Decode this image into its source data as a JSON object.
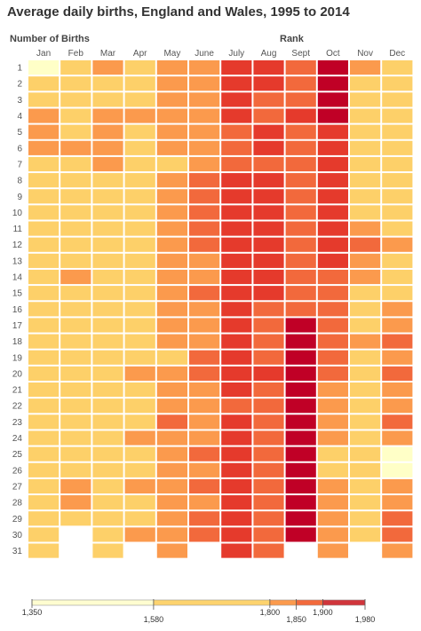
{
  "chart_data": {
    "type": "heatmap",
    "title": "Average daily births, England and Wales, 1995 to 2014",
    "header_left": "Number of Births",
    "header_right": "Rank",
    "months": [
      "Jan",
      "Feb",
      "Mar",
      "Apr",
      "May",
      "June",
      "July",
      "Aug",
      "Sept",
      "Oct",
      "Nov",
      "Dec"
    ],
    "days": [
      "1",
      "2",
      "3",
      "4",
      "5",
      "6",
      "7",
      "8",
      "9",
      "10",
      "11",
      "12",
      "13",
      "14",
      "15",
      "16",
      "17",
      "18",
      "19",
      "20",
      "21",
      "22",
      "23",
      "24",
      "25",
      "26",
      "27",
      "28",
      "29",
      "30",
      "31"
    ],
    "rank_matrix": [
      [
        1,
        2,
        3,
        2,
        3,
        3,
        5,
        5,
        4,
        6,
        3,
        2
      ],
      [
        2,
        2,
        2,
        2,
        3,
        3,
        5,
        5,
        4,
        6,
        2,
        2
      ],
      [
        2,
        2,
        2,
        2,
        3,
        3,
        5,
        4,
        4,
        6,
        2,
        2
      ],
      [
        3,
        2,
        3,
        3,
        3,
        3,
        5,
        4,
        5,
        6,
        2,
        2
      ],
      [
        3,
        2,
        3,
        2,
        3,
        3,
        4,
        5,
        4,
        5,
        2,
        2
      ],
      [
        3,
        3,
        3,
        2,
        3,
        3,
        4,
        5,
        4,
        5,
        2,
        2
      ],
      [
        2,
        2,
        3,
        2,
        2,
        3,
        4,
        4,
        4,
        5,
        2,
        2
      ],
      [
        2,
        2,
        2,
        2,
        3,
        4,
        5,
        5,
        4,
        5,
        2,
        2
      ],
      [
        2,
        2,
        2,
        2,
        3,
        4,
        5,
        5,
        4,
        5,
        2,
        2
      ],
      [
        2,
        2,
        2,
        2,
        3,
        4,
        5,
        5,
        4,
        5,
        2,
        2
      ],
      [
        2,
        2,
        2,
        2,
        3,
        4,
        5,
        5,
        4,
        5,
        3,
        2
      ],
      [
        2,
        2,
        2,
        2,
        3,
        4,
        5,
        5,
        4,
        5,
        4,
        3
      ],
      [
        2,
        2,
        2,
        2,
        3,
        3,
        5,
        5,
        4,
        5,
        3,
        2
      ],
      [
        2,
        3,
        2,
        2,
        3,
        3,
        5,
        5,
        4,
        4,
        3,
        2
      ],
      [
        2,
        2,
        2,
        2,
        3,
        4,
        5,
        5,
        4,
        4,
        2,
        2
      ],
      [
        2,
        2,
        2,
        2,
        3,
        3,
        5,
        4,
        4,
        4,
        2,
        3
      ],
      [
        2,
        2,
        2,
        2,
        3,
        3,
        5,
        4,
        6,
        4,
        2,
        3
      ],
      [
        2,
        2,
        2,
        2,
        3,
        3,
        5,
        4,
        6,
        4,
        3,
        4
      ],
      [
        2,
        2,
        2,
        2,
        2,
        4,
        5,
        4,
        6,
        4,
        2,
        3
      ],
      [
        2,
        2,
        2,
        3,
        3,
        4,
        5,
        5,
        6,
        4,
        2,
        4
      ],
      [
        2,
        2,
        2,
        2,
        3,
        3,
        5,
        4,
        6,
        3,
        2,
        3
      ],
      [
        2,
        2,
        2,
        2,
        3,
        3,
        4,
        4,
        6,
        3,
        2,
        3
      ],
      [
        2,
        2,
        2,
        2,
        4,
        3,
        5,
        4,
        6,
        3,
        2,
        4
      ],
      [
        2,
        2,
        2,
        3,
        3,
        3,
        5,
        4,
        6,
        3,
        2,
        3
      ],
      [
        2,
        2,
        2,
        2,
        3,
        4,
        5,
        4,
        6,
        2,
        2,
        1
      ],
      [
        2,
        2,
        2,
        2,
        3,
        3,
        5,
        4,
        6,
        2,
        2,
        1
      ],
      [
        2,
        3,
        2,
        3,
        3,
        4,
        5,
        4,
        6,
        3,
        2,
        3
      ],
      [
        2,
        3,
        2,
        2,
        3,
        3,
        5,
        4,
        6,
        3,
        2,
        3
      ],
      [
        2,
        2,
        2,
        2,
        3,
        4,
        5,
        4,
        6,
        3,
        2,
        4
      ],
      [
        2,
        null,
        2,
        3,
        3,
        4,
        5,
        4,
        6,
        3,
        2,
        4
      ],
      [
        2,
        null,
        2,
        null,
        3,
        null,
        5,
        4,
        null,
        3,
        null,
        3
      ]
    ],
    "colors": {
      "rank_1": "#ffffc7",
      "rank_2": "#fdd069",
      "rank_3": "#fb9a4d",
      "rank_4": "#f2693c",
      "rank_5": "#e53a2c",
      "rank_6": "#c00026"
    },
    "legend": {
      "ticks": [
        "1,350",
        "1,580",
        "1,800",
        "1,850",
        "1,900",
        "1,980"
      ],
      "tick_values": [
        1350,
        1580,
        1800,
        1850,
        1900,
        1980
      ],
      "segment_colors": [
        "#fffdd0",
        "#fdd36e",
        "#fb9a4d",
        "#f26a3c",
        "#d0353b"
      ]
    }
  }
}
